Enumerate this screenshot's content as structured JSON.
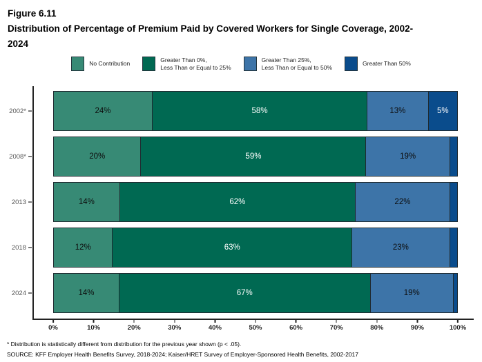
{
  "figure": {
    "label": "Figure 6.11",
    "title": "Distribution of Percentage of Premium Paid by Covered Workers for Single Coverage, 2002-2024"
  },
  "footnotes": [
    "* Distribution is statistically different from distribution for the previous year shown (p < .05).",
    "SOURCE: KFF Employer Health Benefits Survey, 2018-2024; Kaiser/HRET Survey of Employer-Sponsored Health Benefits, 2002-2017"
  ],
  "chart_data": {
    "type": "bar",
    "orientation": "horizontal",
    "stacked": true,
    "title": "Figure 6.11",
    "subtitle": "Distribution of Percentage of Premium Paid by Covered Workers for Single Coverage, 2002-2024",
    "categories": [
      "2002*",
      "2008*",
      "2013",
      "2018",
      "2024"
    ],
    "series": [
      {
        "name": "No Contribution",
        "legend_label": "No Contribution",
        "color": "#378A75",
        "text_color": "#0d0d0d",
        "values": [
          24,
          20,
          14,
          12,
          14
        ],
        "labels": [
          "24%",
          "20%",
          "14%",
          "12%",
          "14%"
        ]
      },
      {
        "name": "Greater Than 0%, Less Than or Equal to 25%",
        "legend_label": "Greater Than 0%,\nLess Than or Equal to 25%",
        "color": "#006952",
        "text_color": "#ffffff",
        "values": [
          58,
          59,
          62,
          63,
          67
        ],
        "labels": [
          "58%",
          "59%",
          "62%",
          "63%",
          "67%"
        ]
      },
      {
        "name": "Greater Than 25%, Less Than or Equal to 50%",
        "legend_label": "Greater Than 25%,\nLess Than or Equal to 50%",
        "color": "#3D74A8",
        "text_color": "#0d0d0d",
        "values": [
          13,
          19,
          22,
          23,
          19
        ],
        "labels": [
          "13%",
          "19%",
          "22%",
          "23%",
          "19%"
        ]
      },
      {
        "name": "Greater Than 50%",
        "legend_label": "Greater Than 50%",
        "color": "#0A4C8C",
        "text_color": "#ffffff",
        "values": [
          5,
          2,
          2,
          2,
          1
        ],
        "labels": [
          "5%",
          "",
          "",
          "",
          ""
        ]
      }
    ],
    "x_ticks": [
      "0%",
      "10%",
      "20%",
      "30%",
      "40%",
      "50%",
      "60%",
      "70%",
      "80%",
      "90%",
      "100%"
    ],
    "xlim": [
      0,
      100
    ],
    "xlabel": "",
    "ylabel": "",
    "grid": false,
    "legend_position": "top"
  }
}
